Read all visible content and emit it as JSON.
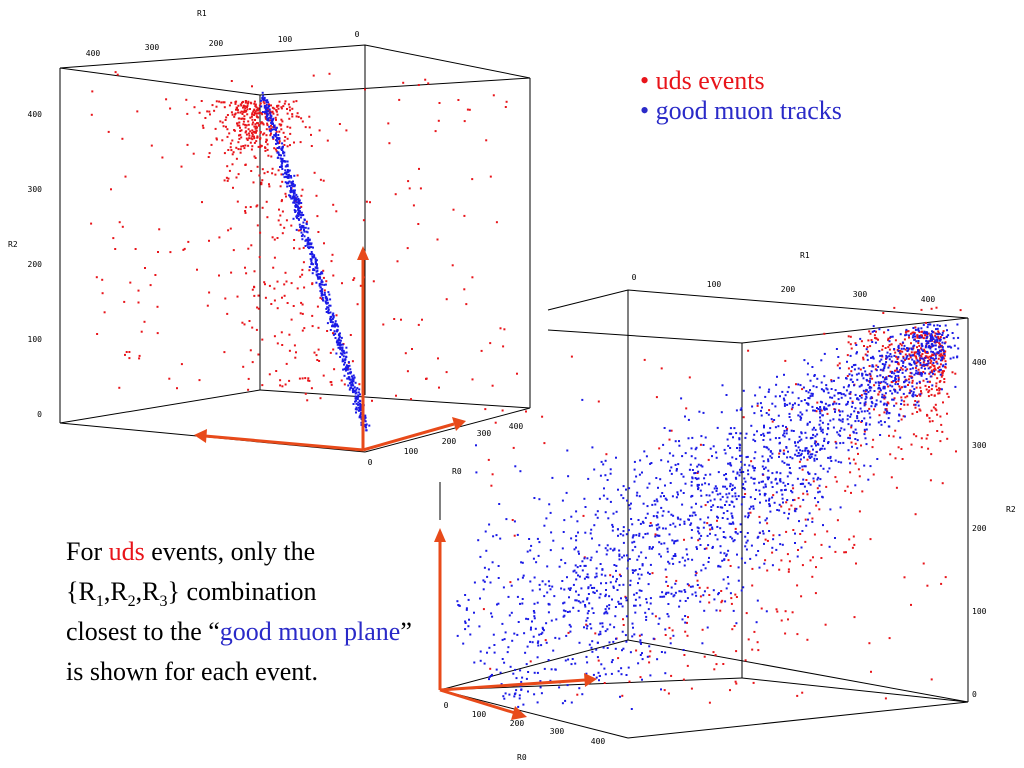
{
  "legend": {
    "items": [
      {
        "label": "• uds events",
        "color": "#e8141a"
      },
      {
        "label": "• good muon tracks",
        "color": "#2a2ac8"
      }
    ]
  },
  "caption": {
    "t1": "For ",
    "t2": "uds",
    "t3": " events, only the",
    "t4": "{R",
    "s1": "1",
    "t5": ",R",
    "s2": "2",
    "t6": ",R",
    "s3": "3",
    "t7": "} combination",
    "t8": "closest to the “",
    "t9": "good muon plane",
    "t10": "” is shown for each event."
  },
  "colors": {
    "uds": "#e8141a",
    "muon": "#1a1ae6",
    "arrow": "#e84a1a"
  },
  "chart_data": [
    {
      "type": "scatter",
      "view": "3d",
      "axes": {
        "R1": {
          "ticks": [
            "400",
            "300",
            "200",
            "100",
            "0"
          ],
          "label": "R1"
        },
        "R2": {
          "ticks": [
            "0",
            "100",
            "200",
            "300",
            "400"
          ],
          "label": "R2"
        },
        "R0": {
          "ticks": [
            "0",
            "100",
            "200",
            "300",
            "400"
          ],
          "label": ""
        }
      },
      "series": [
        {
          "name": "uds events",
          "description_points": "scattered, concentrated near top near R1=0 line",
          "count_est": 650
        },
        {
          "name": "good muon tracks",
          "description_points": "tight diagonal line from (R1=0,R2=0) to (R1=110,R2=420)",
          "count_est": 600
        }
      ]
    },
    {
      "type": "scatter",
      "view": "3d",
      "axes": {
        "R1": {
          "ticks": [
            "0",
            "100",
            "200",
            "300",
            "400"
          ],
          "label": "R1"
        },
        "R2": {
          "ticks": [
            "0",
            "100",
            "200",
            "300",
            "400"
          ],
          "label": "R2"
        },
        "R0": {
          "ticks": [
            "0",
            "100",
            "200",
            "300",
            "400"
          ],
          "label": "R0"
        },
        "R0_vertical_label": "R0"
      },
      "series": [
        {
          "name": "uds events",
          "description_points": "concentrated near top-right corner and spread along diagonal",
          "count_est": 700
        },
        {
          "name": "good muon tracks",
          "description_points": "broad diagonal band from lower-left to upper-right",
          "count_est": 2000
        }
      ]
    }
  ]
}
